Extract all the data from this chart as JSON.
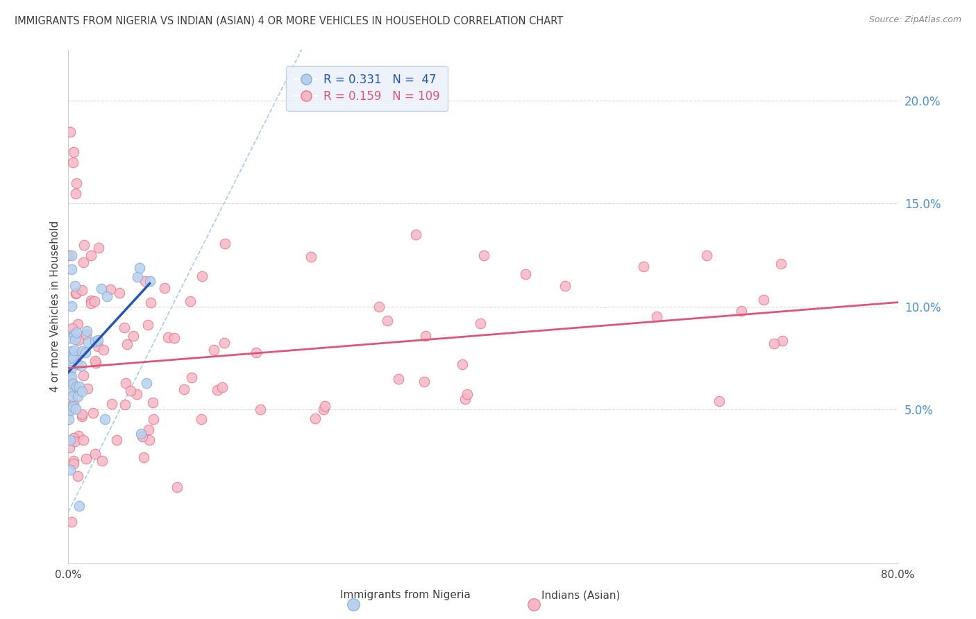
{
  "title": "IMMIGRANTS FROM NIGERIA VS INDIAN (ASIAN) 4 OR MORE VEHICLES IN HOUSEHOLD CORRELATION CHART",
  "source": "Source: ZipAtlas.com",
  "ylabel": "4 or more Vehicles in Household",
  "xlim": [
    0.0,
    0.8
  ],
  "ylim": [
    -0.025,
    0.225
  ],
  "y_ticks_right": [
    0.05,
    0.1,
    0.15,
    0.2
  ],
  "y_tick_labels_right": [
    "5.0%",
    "10.0%",
    "15.0%",
    "20.0%"
  ],
  "nigeria_color": "#b8d0ed",
  "nigeria_edge_color": "#85aed4",
  "india_color": "#f5b8c8",
  "india_edge_color": "#e8788a",
  "nigeria_R": 0.331,
  "nigeria_N": 47,
  "india_R": 0.159,
  "india_N": 109,
  "nigeria_line_color": "#2255bb",
  "india_line_color": "#dd5577",
  "diag_line_color": "#aaccee",
  "grid_color": "#d8d8d8",
  "title_color": "#404040",
  "right_axis_color": "#4a90d9",
  "legend_facecolor": "#eaf1fb",
  "legend_edgecolor": "#b8cce4"
}
